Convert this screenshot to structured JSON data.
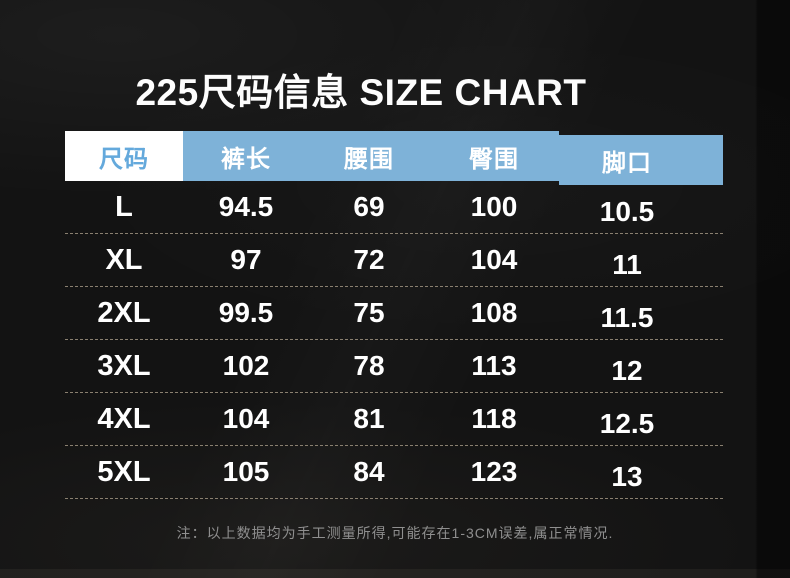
{
  "chart_data": {
    "type": "table",
    "title": "225尺码信息 SIZE CHART",
    "columns": [
      "尺码",
      "裤长",
      "腰围",
      "臀围",
      "脚口"
    ],
    "rows": [
      [
        "L",
        "94.5",
        "69",
        "100",
        "10.5"
      ],
      [
        "XL",
        "97",
        "72",
        "104",
        "11"
      ],
      [
        "2XL",
        "99.5",
        "75",
        "108",
        "11.5"
      ],
      [
        "3XL",
        "102",
        "78",
        "113",
        "12"
      ],
      [
        "4XL",
        "104",
        "81",
        "118",
        "12.5"
      ],
      [
        "5XL",
        "105",
        "84",
        "123",
        "13"
      ]
    ],
    "note": "注：以上数据均为手工测量所得,可能存在1-3CM误差,属正常情况.",
    "layout_hints": {
      "header_style": "first cell white with blue text, remaining cells blue with white text",
      "row_divider": "dashed",
      "background": "black fabric"
    }
  },
  "colors": {
    "header_blue": "#7EB2D8",
    "header_first_cell_bg": "#FFFFFF",
    "header_first_cell_text": "#64A9DC",
    "table_text": "#FFFFFF",
    "divider_dashed": "#8A8070",
    "note_text": "#8F8F8F",
    "background": "#131313"
  }
}
